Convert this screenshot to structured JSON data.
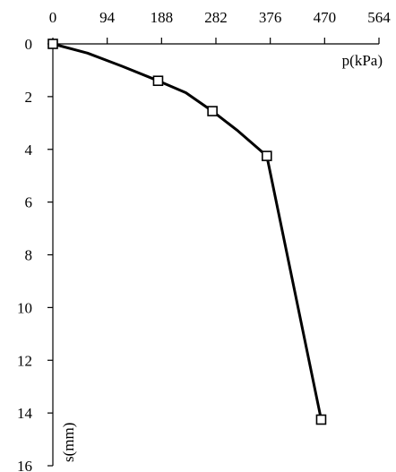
{
  "chart_data": {
    "type": "line",
    "title": "",
    "xlabel": "p(kPa)",
    "ylabel": "s(mm)",
    "x_axis_position": "top",
    "y_axis_inverted": true,
    "xlim": [
      0,
      564
    ],
    "ylim": [
      0,
      16
    ],
    "x_ticks": [
      0,
      94,
      188,
      282,
      376,
      470,
      564
    ],
    "y_ticks": [
      0,
      2,
      4,
      6,
      8,
      10,
      12,
      14,
      16
    ],
    "grid": false,
    "series": [
      {
        "marker": "open-square",
        "color": "#000000",
        "points": [
          {
            "x": 0,
            "y": 0
          },
          {
            "x": 182,
            "y": 1.4
          },
          {
            "x": 276,
            "y": 2.55
          },
          {
            "x": 370,
            "y": 4.25
          },
          {
            "x": 464,
            "y": 14.25
          }
        ],
        "curve_through": [
          {
            "x": 0,
            "y": 0
          },
          {
            "x": 60,
            "y": 0.35
          },
          {
            "x": 120,
            "y": 0.85
          },
          {
            "x": 182,
            "y": 1.4
          },
          {
            "x": 230,
            "y": 1.85
          },
          {
            "x": 276,
            "y": 2.55
          },
          {
            "x": 320,
            "y": 3.3
          },
          {
            "x": 370,
            "y": 4.25
          },
          {
            "x": 464,
            "y": 14.25
          }
        ]
      }
    ]
  }
}
